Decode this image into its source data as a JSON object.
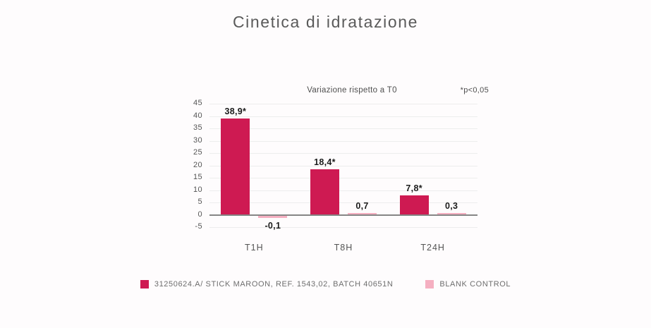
{
  "header": {
    "title": "Cinetica di idratazione"
  },
  "colors": {
    "sample_bar": "#CE1A52",
    "control_bar": "#F5AFC1",
    "background": "#FEFCFD",
    "zero_axis": "#858585",
    "gridline": "#EDEDED"
  },
  "chart_data": {
    "type": "bar",
    "title": "Variazione rispetto a T0",
    "note": "*p<0,05",
    "categories": [
      "T1H",
      "T8H",
      "T24H"
    ],
    "series": [
      {
        "name": "31250624.A/ STICK MAROON, REF. 1543,02, BATCH 40651N",
        "color": "#CE1A52",
        "values": [
          38.9,
          18.4,
          7.8
        ],
        "labels": [
          "38,9*",
          "18,4*",
          "7,8*"
        ]
      },
      {
        "name": "BLANK CONTROL",
        "color": "#F5AFC1",
        "values": [
          -0.1,
          0.7,
          0.3
        ],
        "labels": [
          "-0,1",
          "0,7",
          "0,3"
        ]
      }
    ],
    "ylim": [
      -5,
      45
    ],
    "ytick_step": 5,
    "yticks": [
      45,
      40,
      35,
      30,
      25,
      20,
      15,
      10,
      5,
      0,
      -5
    ],
    "grid": true,
    "legend_position": "bottom"
  }
}
